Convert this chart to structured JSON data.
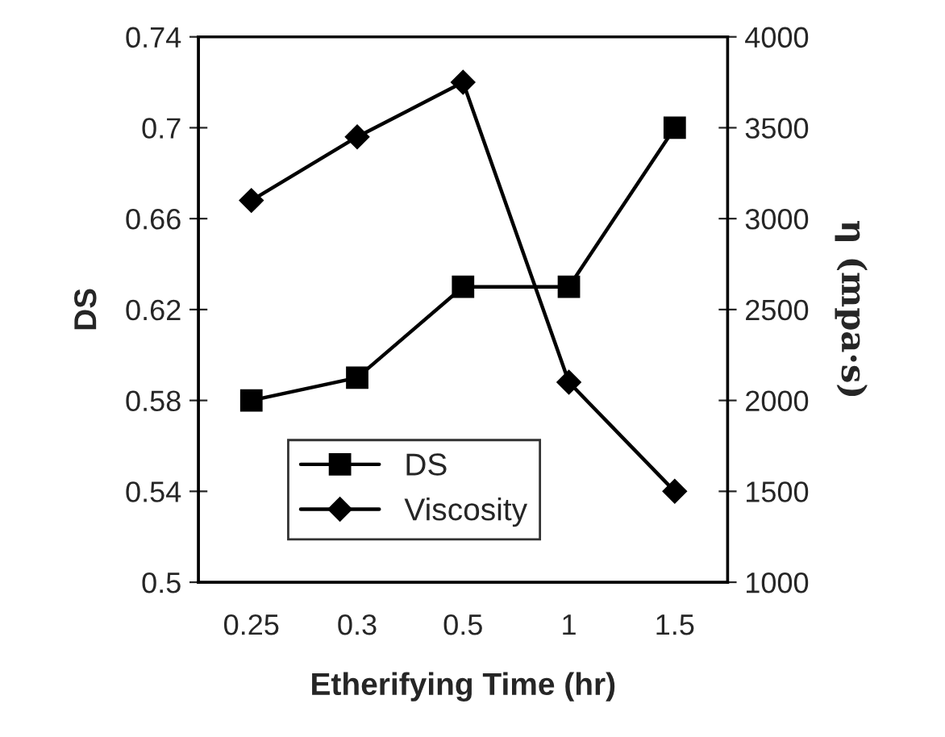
{
  "chart_data": {
    "type": "line",
    "xlabel": "Etherifying Time (hr)",
    "ylabel": "DS",
    "y2label": "η (mpa·s)",
    "categories": [
      "0.25",
      "0.3",
      "0.5",
      "1",
      "1.5"
    ],
    "series": [
      {
        "name": "DS",
        "color": "#000000",
        "marker": "square",
        "values": [
          0.58,
          0.59,
          0.63,
          0.63,
          0.7
        ]
      },
      {
        "name": "Viscosity",
        "color": "#000000",
        "marker": "diamond",
        "axis": "y2",
        "values": [
          3100,
          3450,
          3750,
          2100,
          1500
        ]
      }
    ],
    "ylim": [
      0.5,
      0.74
    ],
    "yticks": [
      0.5,
      0.54,
      0.58,
      0.62,
      0.66,
      0.7,
      0.74
    ],
    "y2lim": [
      1000,
      4000
    ],
    "y2ticks": [
      1000,
      1500,
      2000,
      2500,
      3000,
      3500,
      4000
    ],
    "grid": false,
    "legend": "bottom left",
    "line_style": "solid"
  }
}
